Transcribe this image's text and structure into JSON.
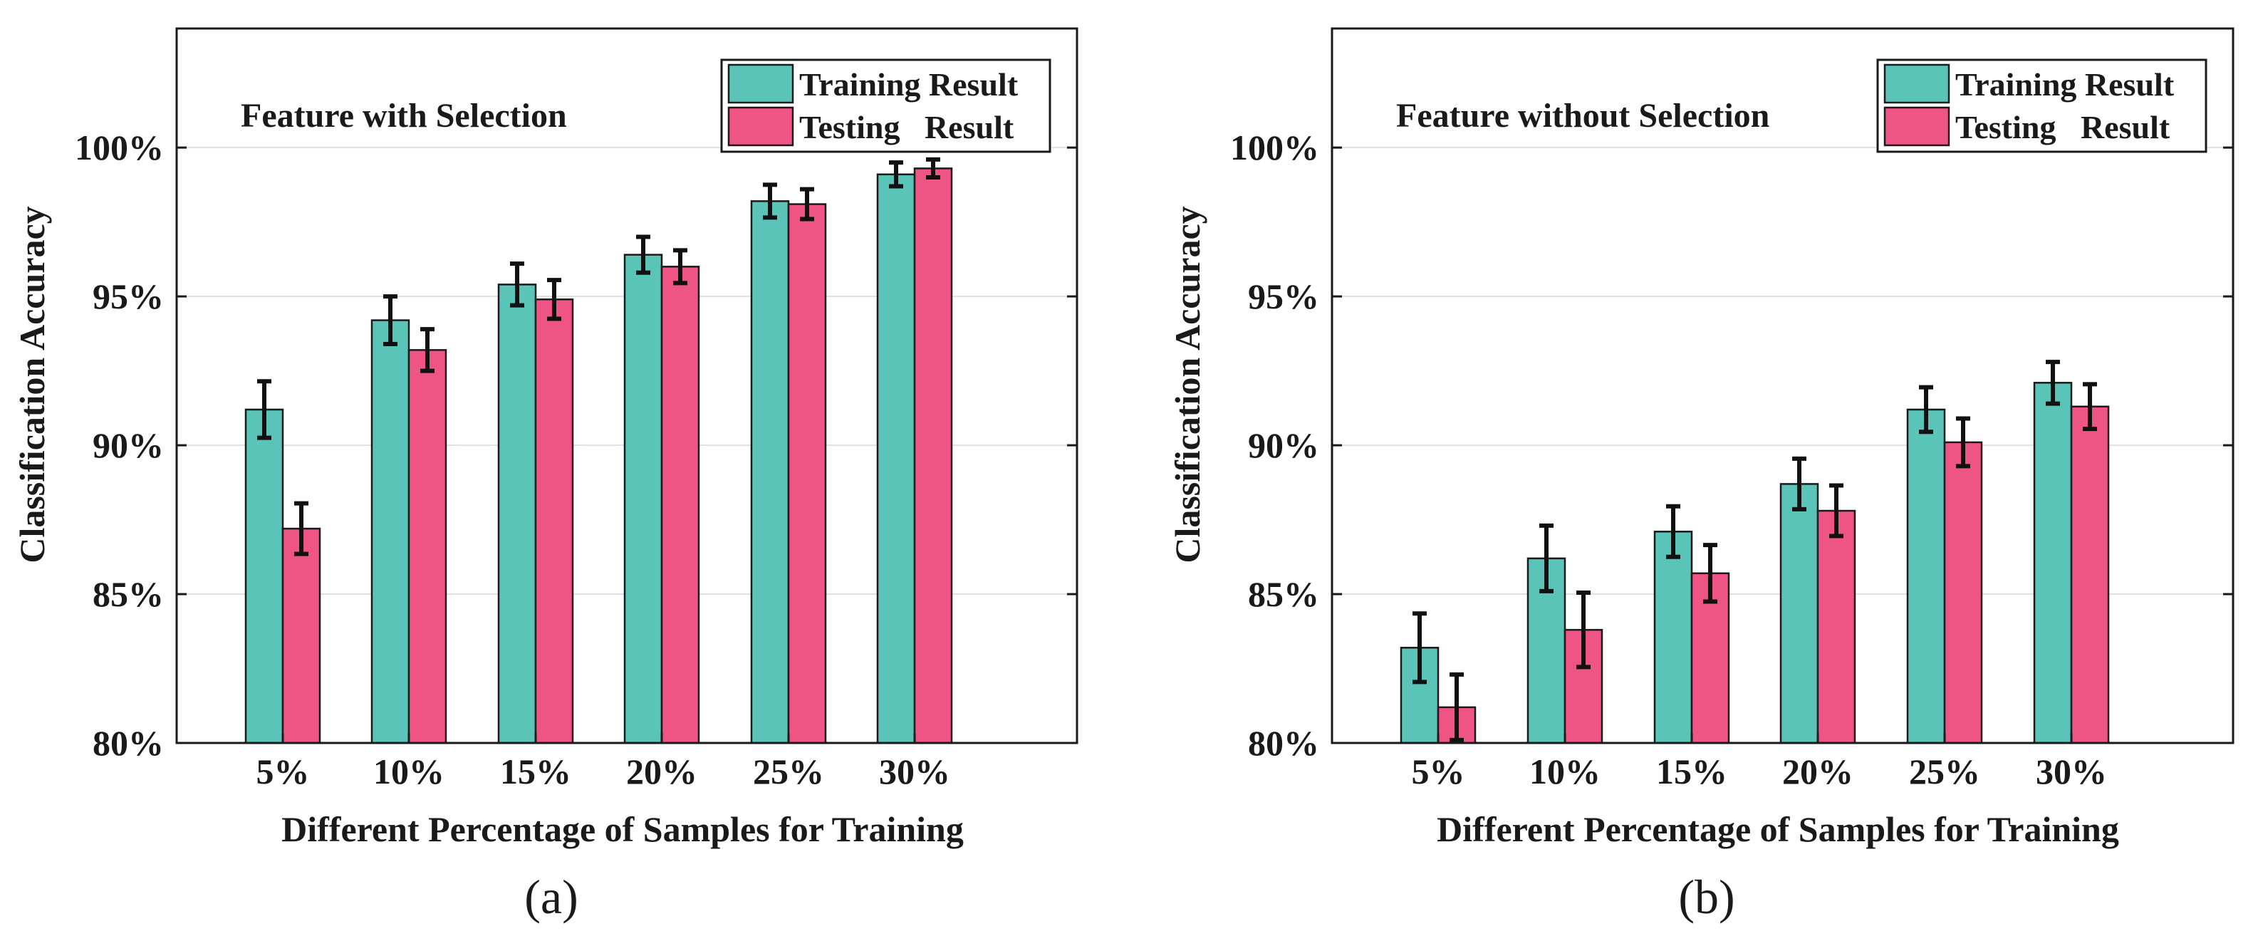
{
  "colors": {
    "training": "#5bc4b9",
    "testing": "#ee5585",
    "axis": "#1a1a1a",
    "grid": "#e0e0e0",
    "errorbar": "#111111"
  },
  "chart_data": [
    {
      "type": "bar",
      "panel_label": "(a)",
      "title": "Feature with Selection",
      "xlabel": "Different Percentage of Samples for Training",
      "ylabel": "Classification Accuracy",
      "categories": [
        "5%",
        "10%",
        "15%",
        "20%",
        "25%",
        "30%"
      ],
      "ylim": [
        80,
        104
      ],
      "yticks": [
        80,
        85,
        90,
        95,
        100
      ],
      "ytick_labels": [
        "80%",
        "85%",
        "90%",
        "95%",
        "100%"
      ],
      "grid": true,
      "legend_position": "top-right",
      "series": [
        {
          "name": "Training Result",
          "values": [
            91.2,
            94.2,
            95.4,
            96.4,
            98.2,
            99.1
          ],
          "errors": [
            0.95,
            0.8,
            0.7,
            0.6,
            0.55,
            0.4
          ]
        },
        {
          "name": "Testing   Result",
          "values": [
            87.2,
            93.2,
            94.9,
            96.0,
            98.1,
            99.3
          ],
          "errors": [
            0.85,
            0.7,
            0.65,
            0.55,
            0.5,
            0.3
          ]
        }
      ]
    },
    {
      "type": "bar",
      "panel_label": "(b)",
      "title": "Feature without Selection",
      "xlabel": "Different Percentage of Samples for Training",
      "ylabel": "Classification Accuracy",
      "categories": [
        "5%",
        "10%",
        "15%",
        "20%",
        "25%",
        "30%"
      ],
      "ylim": [
        80,
        104
      ],
      "yticks": [
        80,
        85,
        90,
        95,
        100
      ],
      "ytick_labels": [
        "80%",
        "85%",
        "90%",
        "95%",
        "100%"
      ],
      "grid": true,
      "legend_position": "top-right",
      "series": [
        {
          "name": "Training Result",
          "values": [
            83.2,
            86.2,
            87.1,
            88.7,
            91.2,
            92.1
          ],
          "errors": [
            1.15,
            1.1,
            0.85,
            0.85,
            0.75,
            0.7
          ]
        },
        {
          "name": "Testing   Result",
          "values": [
            81.2,
            83.8,
            85.7,
            87.8,
            90.1,
            91.3
          ],
          "errors": [
            1.1,
            1.25,
            0.95,
            0.85,
            0.8,
            0.75
          ]
        }
      ]
    }
  ]
}
